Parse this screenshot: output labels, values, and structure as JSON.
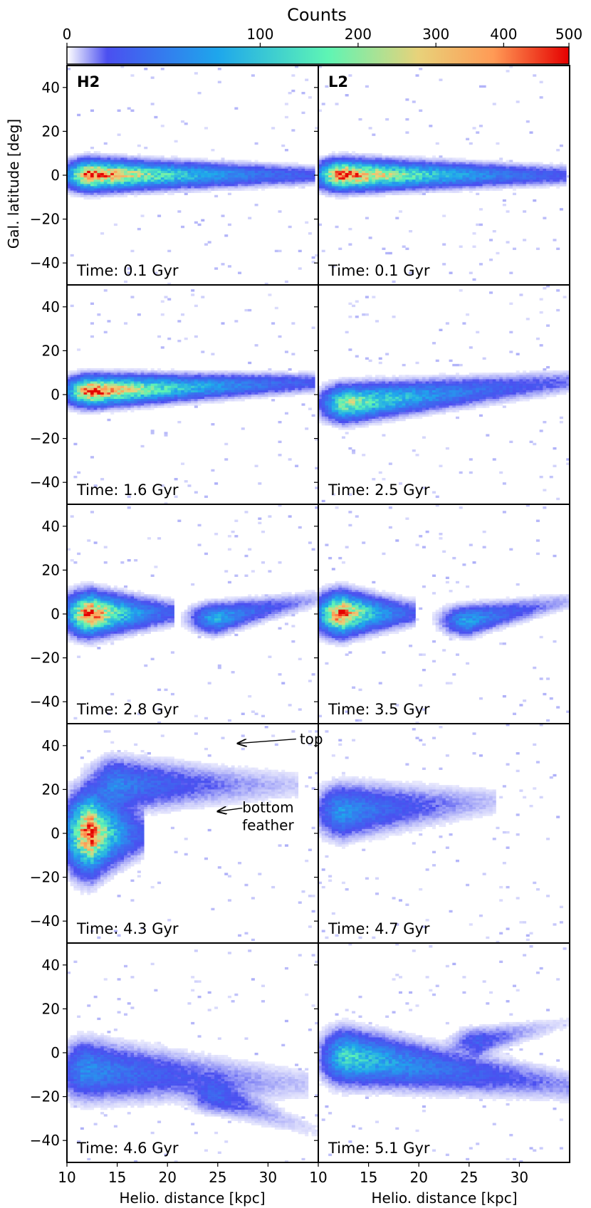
{
  "chart_data": {
    "type": "heatmap",
    "colorbar": {
      "title": "Counts",
      "ticks": [
        0,
        100,
        200,
        300,
        400,
        500
      ],
      "range": [
        0,
        500
      ],
      "colormap": [
        "#ffffff",
        "#4b4ff0",
        "#1ea6ec",
        "#5ef5b4",
        "#e8d27a",
        "#ff9a55",
        "#e50000"
      ]
    },
    "xlabel": "Helio. distance [kpc]",
    "ylabel": "Gal. latitude [deg]",
    "xlim": [
      10,
      35
    ],
    "ylim": [
      -50,
      50
    ],
    "xticks": [
      10,
      15,
      20,
      25,
      30
    ],
    "yticks": [
      -40,
      -20,
      0,
      20,
      40
    ],
    "columns": [
      "H2",
      "L2"
    ],
    "panels": [
      {
        "column": "H2",
        "row": 0,
        "time_label": "Time: 0.1 Gyr",
        "structure": [
          {
            "x0": 12.5,
            "y": 0,
            "slope": 0.0,
            "w0": 4,
            "peak": 480,
            "len": 22
          }
        ]
      },
      {
        "column": "L2",
        "row": 0,
        "time_label": "Time: 0.1 Gyr",
        "structure": [
          {
            "x0": 12.5,
            "y": 0,
            "slope": 0.0,
            "w0": 4,
            "peak": 480,
            "len": 22
          }
        ]
      },
      {
        "column": "H2",
        "row": 1,
        "time_label": "Time: 1.6 Gyr",
        "structure": [
          {
            "x0": 12.5,
            "y": 1.5,
            "slope": 0.18,
            "w0": 4,
            "peak": 470,
            "len": 22
          }
        ]
      },
      {
        "column": "L2",
        "row": 1,
        "time_label": "Time: 2.5 Gyr",
        "structure": [
          {
            "x0": 13,
            "y": -4,
            "slope": 0.45,
            "w0": 5,
            "peak": 300,
            "len": 22
          }
        ]
      },
      {
        "column": "H2",
        "row": 2,
        "time_label": "Time: 2.8 Gyr",
        "structure": [
          {
            "x0": 12.5,
            "y": 0,
            "slope": 0.05,
            "w0": 6,
            "peak": 480,
            "len": 8
          },
          {
            "x0": 25,
            "y": -2,
            "slope": 0.9,
            "w0": 4,
            "peak": 160,
            "len": 10
          }
        ]
      },
      {
        "column": "L2",
        "row": 2,
        "time_label": "Time: 3.5 Gyr",
        "structure": [
          {
            "x0": 12.5,
            "y": 0,
            "slope": 0.05,
            "w0": 6,
            "peak": 470,
            "len": 7
          },
          {
            "x0": 25,
            "y": -3,
            "slope": 0.9,
            "w0": 4,
            "peak": 150,
            "len": 10
          }
        ]
      },
      {
        "column": "H2",
        "row": 3,
        "time_label": "Time: 4.3 Gyr",
        "structure": [
          {
            "x0": 12.5,
            "y": 0,
            "slope": 0.0,
            "w0": 12,
            "peak": 480,
            "len": 5
          },
          {
            "x0": 15,
            "y": 22,
            "slope": 0.0,
            "w0": 8,
            "peak": 110,
            "len": 18
          }
        ]
      },
      {
        "column": "L2",
        "row": 3,
        "time_label": "Time: 4.7 Gyr",
        "structure": [
          {
            "x0": 12.5,
            "y": 10,
            "slope": 0.3,
            "w0": 8,
            "peak": 130,
            "len": 15
          }
        ]
      },
      {
        "column": "H2",
        "row": 4,
        "time_label": "Time: 4.6 Gyr",
        "structure": [
          {
            "x0": 12,
            "y": -8,
            "slope": -0.3,
            "w0": 9,
            "peak": 120,
            "len": 22
          },
          {
            "x0": 25,
            "y": -20,
            "slope": -1.6,
            "w0": 5,
            "peak": 60,
            "len": 10
          }
        ]
      },
      {
        "column": "L2",
        "row": 4,
        "time_label": "Time: 5.1 Gyr",
        "structure": [
          {
            "x0": 13,
            "y": -2,
            "slope": -0.6,
            "w0": 8,
            "peak": 220,
            "len": 22
          },
          {
            "x0": 26,
            "y": 5,
            "slope": 1.0,
            "w0": 4,
            "peak": 60,
            "len": 9
          }
        ]
      }
    ],
    "annotations": [
      {
        "text": "top",
        "panel": "H2-row3",
        "x_text": 33.5,
        "y_text": 43,
        "x_arrow": 27,
        "y_arrow": 41
      },
      {
        "text_lines": [
          "bottom",
          "feather"
        ],
        "panel": "H2-row3",
        "x_text": 30,
        "y_text": 5,
        "x_arrow": 25,
        "y_arrow": 10
      }
    ]
  }
}
